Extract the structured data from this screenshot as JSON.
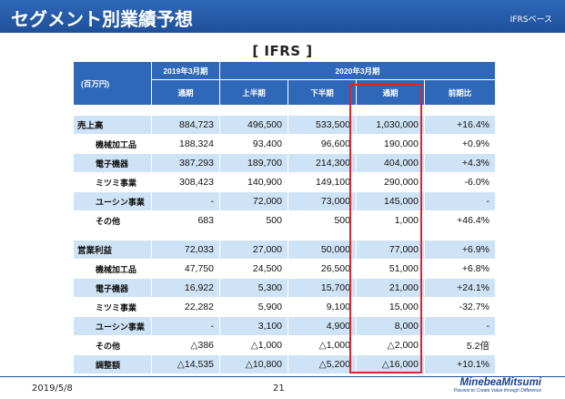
{
  "header": {
    "title": "セグメント別業績予想",
    "basis": "IFRSベース"
  },
  "subtitle": "[ IFRS ]",
  "table": {
    "unit": "(百万円)",
    "fy2019": "2019年3月期",
    "fy2020": "2020年3月期",
    "cols": {
      "full2019": "通期",
      "h1": "上半期",
      "h2": "下半期",
      "full2020": "通期",
      "yoy": "前期比"
    },
    "rows": [
      {
        "label": "売上高",
        "v": [
          "884,723",
          "496,500",
          "533,500",
          "1,030,000",
          "+16.4%"
        ]
      },
      {
        "label": "機械加工品",
        "v": [
          "188,324",
          "93,400",
          "96,600",
          "190,000",
          "+0.9%"
        ]
      },
      {
        "label": "電子機器",
        "v": [
          "387,293",
          "189,700",
          "214,300",
          "404,000",
          "+4.3%"
        ]
      },
      {
        "label": "ミツミ事業",
        "v": [
          "308,423",
          "140,900",
          "149,100",
          "290,000",
          "-6.0%"
        ]
      },
      {
        "label": "ユーシン事業",
        "v": [
          "-",
          "72,000",
          "73,000",
          "145,000",
          "-"
        ]
      },
      {
        "label": "その他",
        "v": [
          "683",
          "500",
          "500",
          "1,000",
          "+46.4%"
        ]
      },
      {
        "label": "営業利益",
        "v": [
          "72,033",
          "27,000",
          "50,000",
          "77,000",
          "+6.9%"
        ]
      },
      {
        "label": "機械加工品",
        "v": [
          "47,750",
          "24,500",
          "26,500",
          "51,000",
          "+6.8%"
        ]
      },
      {
        "label": "電子機器",
        "v": [
          "16,922",
          "5,300",
          "15,700",
          "21,000",
          "+24.1%"
        ]
      },
      {
        "label": "ミツミ事業",
        "v": [
          "22,282",
          "5,900",
          "9,100",
          "15,000",
          "-32.7%"
        ]
      },
      {
        "label": "ユーシン事業",
        "v": [
          "-",
          "3,100",
          "4,900",
          "8,000",
          "-"
        ]
      },
      {
        "label": "その他",
        "v": [
          "△386",
          "△1,000",
          "△1,000",
          "△2,000",
          "5.2倍"
        ]
      },
      {
        "label": "調整額",
        "v": [
          "△14,535",
          "△10,800",
          "△5,200",
          "△16,000",
          "+10.1%"
        ]
      }
    ]
  },
  "footer": {
    "date": "2019/5/8",
    "page": "21",
    "logo_name": "MinebeaMitsumi",
    "logo_tag": "Passion to Create Value through Difference"
  },
  "colors": {
    "header": "#2f68b8",
    "row_band": "#cfe3f6",
    "highlight": "#d8262e"
  }
}
